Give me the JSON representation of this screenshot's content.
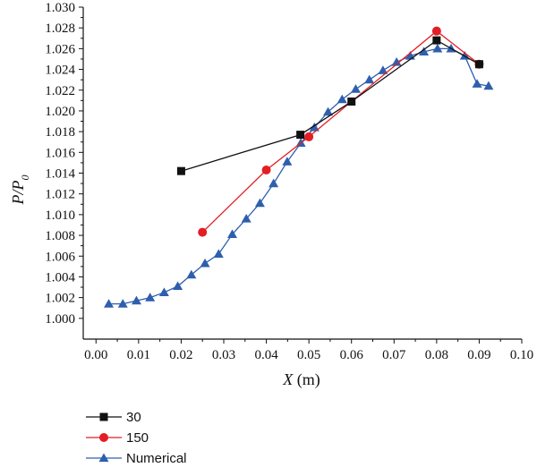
{
  "chart_data": {
    "type": "line",
    "title": "",
    "xlabel": "X (m)",
    "ylabel": "P/P0",
    "xlim": [
      -0.003,
      0.1
    ],
    "ylim": [
      0.998,
      1.03
    ],
    "x_ticks": [
      "0.00",
      "0.01",
      "0.02",
      "0.03",
      "0.04",
      "0.05",
      "0.06",
      "0.07",
      "0.08",
      "0.09",
      "0.10"
    ],
    "y_ticks": [
      "1.000",
      "1.002",
      "1.004",
      "1.006",
      "1.008",
      "1.010",
      "1.012",
      "1.014",
      "1.016",
      "1.018",
      "1.020",
      "1.022",
      "1.024",
      "1.026",
      "1.028",
      "1.030"
    ],
    "grid": false,
    "legend_position": "bottom-left",
    "series": [
      {
        "name": "30",
        "color": "#111111",
        "marker": "square",
        "x": [
          0.02,
          0.048,
          0.06,
          0.08,
          0.09
        ],
        "y": [
          1.0142,
          1.0177,
          1.0209,
          1.0268,
          1.0245
        ]
      },
      {
        "name": "150",
        "color": "#e31e24",
        "marker": "circle",
        "x": [
          0.025,
          0.04,
          0.05,
          0.08,
          0.09
        ],
        "y": [
          1.0083,
          1.0143,
          1.0175,
          1.0277,
          1.0245
        ]
      },
      {
        "name": "Numerical",
        "color": "#2e5fae",
        "marker": "triangle",
        "x": [
          0.003,
          0.0063,
          0.0095,
          0.0127,
          0.016,
          0.0192,
          0.0224,
          0.0256,
          0.0288,
          0.032,
          0.0353,
          0.0385,
          0.0417,
          0.0449,
          0.0481,
          0.0513,
          0.0545,
          0.0578,
          0.061,
          0.0642,
          0.0674,
          0.0706,
          0.0738,
          0.077,
          0.0802,
          0.0834,
          0.0866,
          0.0895,
          0.0922
        ],
        "y": [
          1.0014,
          1.0014,
          1.0017,
          1.002,
          1.0025,
          1.0031,
          1.0042,
          1.0053,
          1.0062,
          1.0081,
          1.0096,
          1.0111,
          1.013,
          1.0151,
          1.0169,
          1.0184,
          1.0199,
          1.0211,
          1.0221,
          1.023,
          1.0239,
          1.0247,
          1.0253,
          1.0257,
          1.026,
          1.026,
          1.0253,
          1.0226,
          1.0224
        ]
      }
    ]
  }
}
